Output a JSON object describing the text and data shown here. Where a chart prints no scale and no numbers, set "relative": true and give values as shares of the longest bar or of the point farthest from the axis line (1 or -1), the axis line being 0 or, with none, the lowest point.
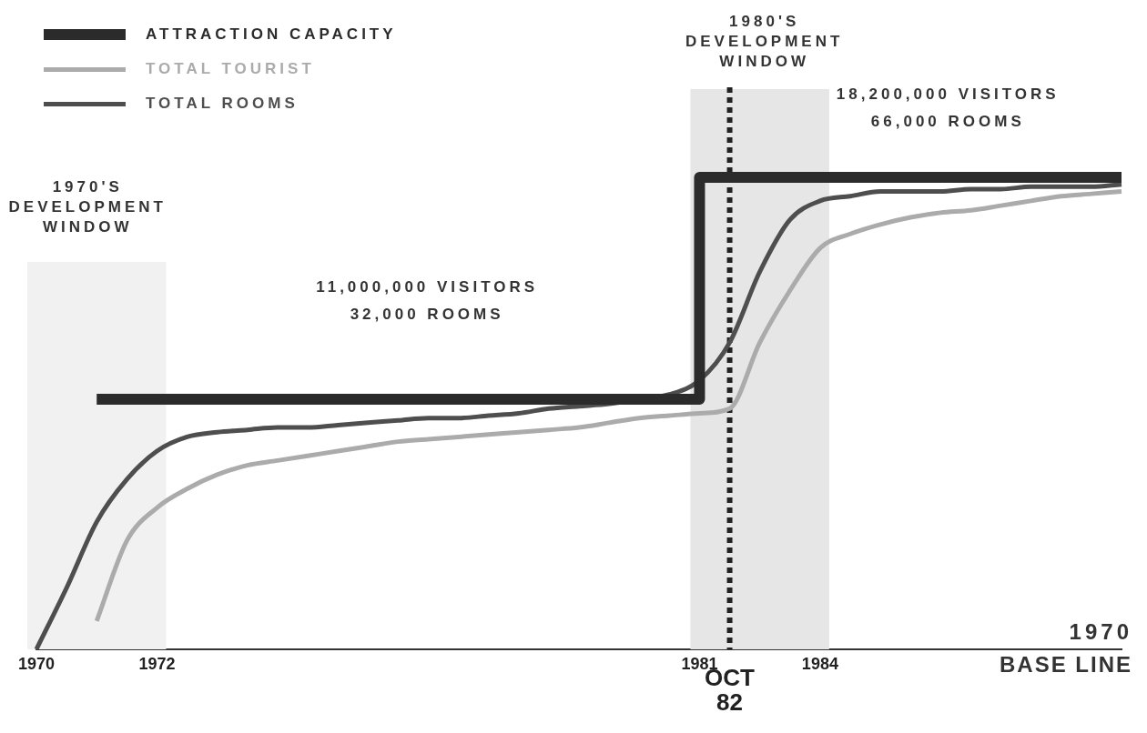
{
  "chart_data": {
    "type": "line",
    "relative": true,
    "grid": false,
    "legend": "top left",
    "categories": [
      "1970",
      null,
      null,
      null,
      "1972",
      null,
      null,
      null,
      null,
      null,
      null,
      null,
      null,
      null,
      null,
      null,
      null,
      null,
      null,
      null,
      null,
      null,
      "1981",
      "OCT 82",
      null,
      null,
      "1984",
      null,
      null,
      null,
      null,
      null,
      null,
      null,
      null,
      null,
      null
    ],
    "series": [
      {
        "name": "ATTRACTION CAPACITY",
        "type": "step",
        "color": "#2b2b2b",
        "values": [
          null,
          null,
          0.53,
          0.53,
          0.53,
          0.53,
          0.53,
          0.53,
          0.53,
          0.53,
          0.53,
          0.53,
          0.53,
          0.53,
          0.53,
          0.53,
          0.53,
          0.53,
          0.53,
          0.53,
          0.53,
          0.53,
          0.53,
          1.0,
          1.0,
          1.0,
          1.0,
          1.0,
          1.0,
          1.0,
          1.0,
          1.0,
          1.0,
          1.0,
          1.0,
          1.0,
          1.0
        ]
      },
      {
        "name": "TOTAL TOURIST",
        "color": "#ababab",
        "values": [
          null,
          null,
          0.06,
          0.23,
          0.3,
          0.34,
          0.37,
          0.39,
          0.4,
          0.41,
          0.42,
          0.43,
          0.44,
          0.445,
          0.45,
          0.455,
          0.46,
          0.465,
          0.47,
          0.48,
          0.49,
          0.495,
          0.5,
          0.51,
          0.65,
          0.76,
          0.85,
          0.88,
          0.9,
          0.915,
          0.925,
          0.93,
          0.94,
          0.95,
          0.96,
          0.965,
          0.97
        ]
      },
      {
        "name": "TOTAL ROOMS",
        "color": "#4e4e4e",
        "values": [
          0,
          0.13,
          0.27,
          0.36,
          0.42,
          0.45,
          0.46,
          0.465,
          0.47,
          0.47,
          0.475,
          0.48,
          0.485,
          0.49,
          0.49,
          0.495,
          0.5,
          0.51,
          0.515,
          0.52,
          0.53,
          0.54,
          0.57,
          0.65,
          0.8,
          0.91,
          0.95,
          0.96,
          0.97,
          0.97,
          0.97,
          0.975,
          0.975,
          0.98,
          0.98,
          0.98,
          0.985
        ]
      }
    ],
    "bands": [
      {
        "axis": "x",
        "from": "1970",
        "to": "1972",
        "label": "1970'S DEVELOPMENT WINDOW",
        "color": "#f1f1f1"
      },
      {
        "axis": "x",
        "from": "1981",
        "to": "1984",
        "label": "1980'S DEVELOPMENT WINDOW",
        "color": "#e6e6e6"
      }
    ],
    "ref_lines": [
      {
        "axis": "x",
        "value": "OCT 82",
        "color": "#222222",
        "line_style": "dotted"
      }
    ],
    "annotations": [
      "11,000,000 VISITORS",
      "32,000 ROOMS",
      "18,200,000 VISITORS",
      "66,000 ROOMS",
      "1970",
      "BASE LINE"
    ]
  }
}
